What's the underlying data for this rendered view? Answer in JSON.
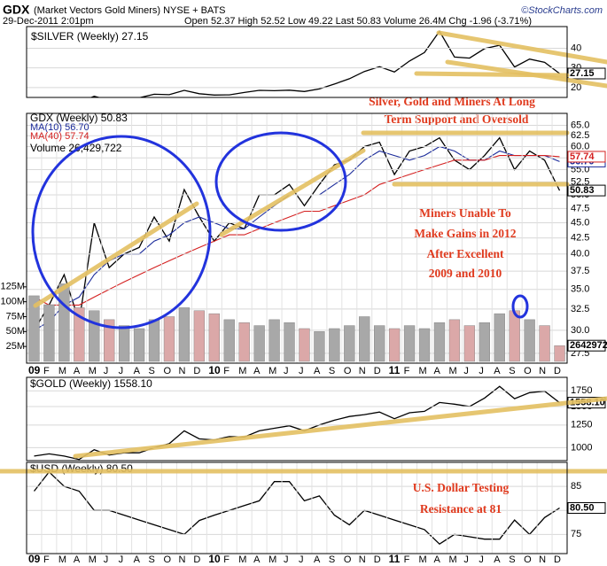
{
  "header": {
    "symbol": "GDX",
    "name": "(Market Vectors Gold Miners) NYSE + BATS",
    "credit": "©StockCharts.com",
    "date": "29-Dec-2011 2:01pm",
    "quote": "Open 52.37 High 52.52 Low 49.22 Last 50.83 Volume 26.4M Chg -1.96 (-3.71%)"
  },
  "chart_data": [
    {
      "type": "line",
      "title": "$SILVER (Weekly) 27.15",
      "categories": [
        "09",
        "F",
        "M",
        "A",
        "M",
        "J",
        "J",
        "A",
        "S",
        "O",
        "N",
        "D",
        "10",
        "F",
        "M",
        "A",
        "M",
        "J",
        "J",
        "A",
        "S",
        "O",
        "N",
        "D",
        "11",
        "F",
        "M",
        "A",
        "M",
        "J",
        "J",
        "A",
        "S",
        "O",
        "N",
        "D"
      ],
      "series": [
        {
          "color": "#000000",
          "values": [
            11.3,
            13.2,
            13.0,
            12.5,
            15.6,
            13.6,
            13.8,
            14.8,
            16.6,
            16.4,
            18.6,
            16.9,
            16.2,
            16.3,
            17.5,
            18.6,
            18.4,
            18.7,
            18.0,
            19.3,
            21.8,
            24.5,
            28.2,
            30.6,
            27.9,
            33.5,
            37.8,
            48.6,
            35.5,
            35.0,
            39.8,
            41.5,
            30.5,
            34.5,
            32.8,
            27.15
          ]
        }
      ],
      "ylim": [
        15,
        51
      ],
      "yticks": [
        20,
        30,
        40
      ],
      "grid": true,
      "annotations": [
        "Silver, Gold and Miners At Long",
        "Term Support and Oversold"
      ]
    },
    {
      "type": "line",
      "title": "GDX (Weekly) 50.83",
      "log": true,
      "categories": [
        "09",
        "F",
        "M",
        "A",
        "M",
        "J",
        "J",
        "A",
        "S",
        "O",
        "N",
        "D",
        "10",
        "F",
        "M",
        "A",
        "M",
        "J",
        "J",
        "A",
        "S",
        "O",
        "N",
        "D",
        "11",
        "F",
        "M",
        "A",
        "M",
        "J",
        "J",
        "A",
        "S",
        "O",
        "N",
        "D"
      ],
      "series": [
        {
          "color": "#000000",
          "values": [
            30,
            33,
            37,
            31,
            45,
            38,
            40,
            41,
            46,
            42,
            51,
            46,
            42,
            45,
            44,
            50,
            50,
            52,
            48,
            52,
            56,
            57,
            60,
            61,
            54,
            59,
            60,
            62,
            57,
            55,
            58,
            62,
            55,
            59,
            57,
            50.83
          ]
        },
        {
          "name": "MA(10) 56.70",
          "color": "#1a2a9a",
          "values": [
            30,
            31,
            33,
            34,
            37,
            39,
            40,
            40,
            42,
            43,
            45,
            46,
            45,
            44,
            44,
            46,
            48,
            50,
            50,
            50,
            52,
            54,
            57,
            59,
            58,
            57,
            58,
            60,
            59,
            57,
            57,
            59,
            58,
            58,
            58,
            56.7
          ],
          "value_labels": [
            null,
            null,
            null,
            null,
            null,
            null,
            null,
            null,
            null,
            null,
            null,
            null,
            null,
            null,
            null,
            null,
            null,
            null,
            null,
            null,
            null,
            null,
            null,
            null,
            null,
            null,
            null,
            null,
            null,
            null,
            null,
            null,
            null,
            null,
            null,
            "56.70"
          ]
        },
        {
          "name": "MA(40) 57.74",
          "color": "#d42020",
          "values": [
            34,
            33,
            33,
            33,
            34,
            35,
            36,
            37,
            38,
            39,
            40,
            41,
            42,
            43,
            43,
            44,
            45,
            46,
            47,
            47,
            48,
            49,
            50,
            52,
            53,
            54,
            55,
            56,
            57,
            57,
            57,
            58,
            58,
            58,
            58,
            57.74
          ]
        }
      ],
      "ylim": [
        26.5,
        68
      ],
      "yticks": [
        {
          "value": 65,
          "label": "65.0"
        },
        62.5,
        {
          "value": 60,
          "label": "60.0"
        },
        57.5,
        {
          "value": 55,
          "label": "55.0"
        },
        52.5,
        {
          "value": 50,
          "label": "50.0"
        },
        47.5,
        {
          "value": 45,
          "label": "45.0"
        },
        42.5,
        {
          "value": 40,
          "label": "40.0"
        },
        37.5,
        {
          "value": 35,
          "label": "35.0"
        },
        32.5,
        {
          "value": 30,
          "label": "30.0"
        },
        27.5
      ],
      "grid": true,
      "annotations": [
        "Miners Unable To",
        "Make Gains in 2012",
        "After Excellent",
        "2009 and 2010"
      ]
    },
    {
      "type": "bar",
      "title": "Volume 26,429,722",
      "up_color": "#a8a8a8",
      "down_color": "#dba8a8",
      "values": [
        110000000,
        95000000,
        130000000,
        90000000,
        85000000,
        70000000,
        60000000,
        55000000,
        70000000,
        75000000,
        90000000,
        85000000,
        80000000,
        70000000,
        65000000,
        60000000,
        70000000,
        65000000,
        55000000,
        50000000,
        55000000,
        60000000,
        75000000,
        60000000,
        55000000,
        60000000,
        55000000,
        65000000,
        70000000,
        60000000,
        65000000,
        80000000,
        85000000,
        70000000,
        60000000,
        26429722
      ],
      "ylim": [
        0,
        150000000
      ],
      "yticks": [
        {
          "value": 25000000,
          "label": "25M"
        },
        {
          "value": 50000000,
          "label": "50M"
        },
        {
          "value": 75000000,
          "label": "75M"
        },
        {
          "value": 100000000,
          "label": "100M"
        },
        {
          "value": 125000000,
          "label": "125M"
        }
      ]
    },
    {
      "type": "line",
      "title": "$GOLD (Weekly) 1558.10",
      "log": true,
      "series": [
        {
          "color": "#000000",
          "values": [
            920,
            940,
            920,
            890,
            980,
            930,
            950,
            950,
            1000,
            1040,
            1180,
            1090,
            1080,
            1115,
            1110,
            1180,
            1210,
            1240,
            1180,
            1250,
            1310,
            1360,
            1385,
            1420,
            1330,
            1410,
            1430,
            1560,
            1535,
            1500,
            1630,
            1830,
            1620,
            1720,
            1745,
            1558.1
          ],
          "value_labels": [
            null,
            null,
            null,
            null,
            null,
            null,
            null,
            null,
            null,
            null,
            null,
            null,
            null,
            null,
            null,
            null,
            null,
            null,
            null,
            null,
            null,
            null,
            null,
            null,
            null,
            null,
            null,
            null,
            null,
            null,
            null,
            null,
            null,
            null,
            null,
            "1558.10"
          ]
        }
      ],
      "ylim": [
        880,
        2000
      ],
      "yticks": [
        1000,
        1250,
        1500,
        1750
      ],
      "grid": true
    },
    {
      "type": "line",
      "title": "$USD (Weekly) 80.50",
      "categories": [
        "09",
        "F",
        "M",
        "A",
        "M",
        "J",
        "J",
        "A",
        "S",
        "O",
        "N",
        "D",
        "10",
        "F",
        "M",
        "A",
        "M",
        "J",
        "J",
        "A",
        "S",
        "O",
        "N",
        "D",
        "11",
        "F",
        "M",
        "A",
        "M",
        "J",
        "J",
        "A",
        "S",
        "O",
        "N",
        "D"
      ],
      "series": [
        {
          "color": "#000000",
          "values": [
            84,
            88,
            85,
            84,
            80,
            80,
            79,
            78,
            77,
            76,
            75,
            77.9,
            79,
            80,
            81,
            82,
            86,
            86,
            82,
            83,
            79,
            77,
            80,
            79,
            78,
            77,
            76,
            73,
            75,
            74.5,
            74,
            74,
            78,
            75,
            78.5,
            80.5
          ],
          "value_labels": [
            null,
            null,
            null,
            null,
            null,
            null,
            null,
            null,
            null,
            null,
            null,
            null,
            null,
            null,
            null,
            null,
            null,
            null,
            null,
            null,
            null,
            null,
            null,
            null,
            null,
            null,
            null,
            null,
            null,
            null,
            null,
            null,
            null,
            null,
            null,
            "80.50"
          ]
        }
      ],
      "ylim": [
        71,
        90
      ],
      "yticks": [
        75,
        80,
        85
      ],
      "grid": true,
      "annotations": [
        "U.S. Dollar Testing",
        "Resistance at 81"
      ]
    }
  ]
}
